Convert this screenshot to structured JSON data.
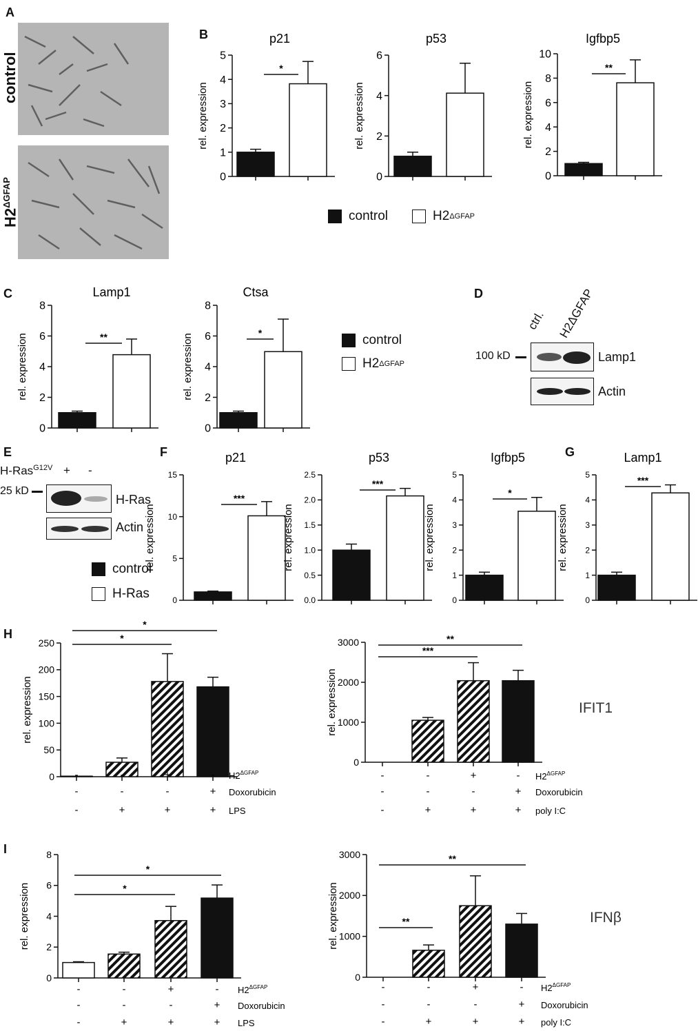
{
  "panels": [
    "A",
    "B",
    "C",
    "D",
    "E",
    "F",
    "G",
    "H",
    "I"
  ],
  "panel_a": {
    "labels": {
      "control": "control",
      "h2": "H2",
      "h2_sup": "ΔGFAP"
    }
  },
  "legend_common": {
    "control": "control",
    "h2": "H2",
    "h2_sup": "ΔGFAP",
    "hras": "H-Ras"
  },
  "blot_d": {
    "header1": "ctrl.",
    "header2": "H2ΔGFAP",
    "marker": "100 kD",
    "row1": "Lamp1",
    "row2": "Actin"
  },
  "blot_e": {
    "top_label": "H-Ras",
    "top_sup": "G12V",
    "plus": "+",
    "minus": "-",
    "marker": "25 kD",
    "row1": "H-Ras",
    "row2": "Actin"
  },
  "row_labels_h": {
    "h2": "H2",
    "h2_sup": "ΔGFAP",
    "dox": "Doxorubicin",
    "lps": "LPS",
    "polyic": "poly I:C"
  },
  "side_labels": {
    "ifit1": "IFIT1",
    "ifnb": "IFNβ"
  },
  "chart_data": [
    {
      "id": "B-p21",
      "type": "bar",
      "title": "p21",
      "ylabel": "rel. expression",
      "ylim": [
        0,
        5
      ],
      "yticks": [
        "0",
        "1",
        "2",
        "3",
        "4",
        "5"
      ],
      "categories": [
        "control",
        "H2ΔGFAP"
      ],
      "values": [
        1.0,
        3.82
      ],
      "errors": [
        0.12,
        0.92
      ],
      "fills": [
        "solid",
        "open"
      ],
      "sig": [
        {
          "from": 0,
          "to": 1,
          "label": "*"
        }
      ]
    },
    {
      "id": "B-p53",
      "type": "bar",
      "title": "p53",
      "ylabel": "rel. expression",
      "ylim": [
        0,
        6
      ],
      "yticks": [
        "0",
        "2",
        "4",
        "6"
      ],
      "categories": [
        "control",
        "H2ΔGFAP"
      ],
      "values": [
        1.0,
        4.12
      ],
      "errors": [
        0.2,
        1.48
      ],
      "fills": [
        "solid",
        "open"
      ],
      "sig": []
    },
    {
      "id": "B-igfbp5",
      "type": "bar",
      "title": "Igfbp5",
      "ylabel": "rel. expression",
      "ylim": [
        0,
        10
      ],
      "yticks": [
        "0",
        "2",
        "4",
        "6",
        "8",
        "10"
      ],
      "categories": [
        "control",
        "H2ΔGFAP"
      ],
      "values": [
        1.0,
        7.62
      ],
      "errors": [
        0.1,
        1.88
      ],
      "fills": [
        "solid",
        "open"
      ],
      "sig": [
        {
          "from": 0,
          "to": 1,
          "label": "**"
        }
      ]
    },
    {
      "id": "C-lamp1",
      "type": "bar",
      "title": "Lamp1",
      "ylabel": "rel. expression",
      "ylim": [
        0,
        8
      ],
      "yticks": [
        "0",
        "2",
        "4",
        "6",
        "8"
      ],
      "categories": [
        "control",
        "H2ΔGFAP"
      ],
      "values": [
        1.0,
        4.78
      ],
      "errors": [
        0.1,
        1.02
      ],
      "fills": [
        "solid",
        "open"
      ],
      "sig": [
        {
          "from": 0,
          "to": 1,
          "label": "**"
        }
      ]
    },
    {
      "id": "C-ctsa",
      "type": "bar",
      "title": "Ctsa",
      "ylabel": "rel. expression",
      "ylim": [
        0,
        8
      ],
      "yticks": [
        "0",
        "2",
        "4",
        "6",
        "8"
      ],
      "categories": [
        "control",
        "H2ΔGFAP"
      ],
      "values": [
        1.0,
        4.98
      ],
      "errors": [
        0.1,
        2.12
      ],
      "fills": [
        "solid",
        "open"
      ],
      "sig": [
        {
          "from": 0,
          "to": 1,
          "label": "*"
        }
      ]
    },
    {
      "id": "F-p21",
      "type": "bar",
      "title": "p21",
      "ylabel": "rel. expression",
      "ylim": [
        0,
        15
      ],
      "yticks": [
        "0",
        "5",
        "10",
        "15"
      ],
      "categories": [
        "control",
        "H-Ras"
      ],
      "values": [
        1.0,
        10.1
      ],
      "errors": [
        0.1,
        1.7
      ],
      "fills": [
        "solid",
        "open"
      ],
      "sig": [
        {
          "from": 0,
          "to": 1,
          "label": "***"
        }
      ]
    },
    {
      "id": "F-p53",
      "type": "bar",
      "title": "p53",
      "ylabel": "rel. expression",
      "ylim": [
        0,
        2.5
      ],
      "yticks": [
        "0.0",
        "0.5",
        "1.0",
        "1.5",
        "2.0",
        "2.5"
      ],
      "categories": [
        "control",
        "H-Ras"
      ],
      "values": [
        1.0,
        2.08
      ],
      "errors": [
        0.12,
        0.15
      ],
      "fills": [
        "solid",
        "open"
      ],
      "sig": [
        {
          "from": 0,
          "to": 1,
          "label": "***"
        }
      ]
    },
    {
      "id": "F-igfbp5",
      "type": "bar",
      "title": "Igfbp5",
      "ylabel": "rel. expression",
      "ylim": [
        0,
        5
      ],
      "yticks": [
        "0",
        "1",
        "2",
        "3",
        "4",
        "5"
      ],
      "categories": [
        "control",
        "H-Ras"
      ],
      "values": [
        1.0,
        3.55
      ],
      "errors": [
        0.12,
        0.55
      ],
      "fills": [
        "solid",
        "open"
      ],
      "sig": [
        {
          "from": 0,
          "to": 1,
          "label": "*"
        }
      ]
    },
    {
      "id": "G-lamp1",
      "type": "bar",
      "title": "Lamp1",
      "ylabel": "rel. expression",
      "ylim": [
        0,
        5
      ],
      "yticks": [
        "0",
        "1",
        "2",
        "3",
        "4",
        "5"
      ],
      "categories": [
        "control",
        "H-Ras"
      ],
      "values": [
        1.0,
        4.28
      ],
      "errors": [
        0.12,
        0.32
      ],
      "fills": [
        "solid",
        "open"
      ],
      "sig": [
        {
          "from": 0,
          "to": 1,
          "label": "***"
        }
      ]
    },
    {
      "id": "H-lps",
      "type": "bar",
      "title": "",
      "ylabel": "rel. expression",
      "ylim": [
        0,
        250
      ],
      "yticks": [
        "0",
        "50",
        "100",
        "150",
        "200",
        "250"
      ],
      "categories": [
        "1",
        "2",
        "3",
        "4"
      ],
      "values": [
        1,
        27,
        178,
        168
      ],
      "errors": [
        0,
        8,
        52,
        18
      ],
      "fills": [
        "solid",
        "hatch",
        "hatch",
        "solid"
      ],
      "sig": [
        {
          "from": 0,
          "to": 2,
          "label": "*"
        },
        {
          "from": 0,
          "to": 3,
          "label": "*"
        }
      ],
      "rows": [
        [
          "-",
          "-",
          "+",
          "-"
        ],
        [
          "-",
          "-",
          "-",
          "+"
        ],
        [
          "-",
          "+",
          "+",
          "+"
        ]
      ],
      "row_labels": [
        "H2ΔGFAP",
        "Doxorubicin",
        "LPS"
      ]
    },
    {
      "id": "H-polyic",
      "type": "bar",
      "title": "",
      "ylabel": "rel. expression",
      "ylim": [
        0,
        3000
      ],
      "yticks": [
        "0",
        "1000",
        "2000",
        "3000"
      ],
      "categories": [
        "1",
        "2",
        "3",
        "4"
      ],
      "values": [
        0,
        1050,
        2040,
        2040
      ],
      "errors": [
        0,
        70,
        450,
        260
      ],
      "fills": [
        "solid",
        "hatch",
        "hatch",
        "solid"
      ],
      "sig": [
        {
          "from": 0,
          "to": 2,
          "label": "***"
        },
        {
          "from": 0,
          "to": 3,
          "label": "**"
        }
      ],
      "rows": [
        [
          "-",
          "-",
          "+",
          "-"
        ],
        [
          "-",
          "-",
          "-",
          "+"
        ],
        [
          "-",
          "+",
          "+",
          "+"
        ]
      ],
      "row_labels": [
        "H2ΔGFAP",
        "Doxorubicin",
        "poly I:C"
      ]
    },
    {
      "id": "I-lps",
      "type": "bar",
      "title": "",
      "ylabel": "rel. expression",
      "ylim": [
        0,
        8
      ],
      "yticks": [
        "0",
        "2",
        "4",
        "6",
        "8"
      ],
      "categories": [
        "1",
        "2",
        "3",
        "4"
      ],
      "values": [
        1.0,
        1.55,
        3.72,
        5.18
      ],
      "errors": [
        0.05,
        0.12,
        0.92,
        0.85
      ],
      "fills": [
        "open",
        "hatch",
        "hatch",
        "solid"
      ],
      "sig": [
        {
          "from": 0,
          "to": 2,
          "label": "*"
        },
        {
          "from": 0,
          "to": 3,
          "label": "*"
        }
      ],
      "rows": [
        [
          "-",
          "-",
          "+",
          "-"
        ],
        [
          "-",
          "-",
          "-",
          "+"
        ],
        [
          "-",
          "+",
          "+",
          "+"
        ]
      ],
      "row_labels": [
        "H2ΔGFAP",
        "Doxorubicin",
        "LPS"
      ]
    },
    {
      "id": "I-polyic",
      "type": "bar",
      "title": "",
      "ylabel": "rel. expression",
      "ylim": [
        0,
        3000
      ],
      "yticks": [
        "0",
        "1000",
        "2000",
        "3000"
      ],
      "categories": [
        "1",
        "2",
        "3",
        "4"
      ],
      "values": [
        0,
        660,
        1750,
        1300
      ],
      "errors": [
        0,
        130,
        730,
        260
      ],
      "fills": [
        "solid",
        "hatch",
        "hatch",
        "solid"
      ],
      "sig": [
        {
          "from": 0,
          "to": 1,
          "label": "**"
        },
        {
          "from": 0,
          "to": 3,
          "label": "**"
        }
      ],
      "rows": [
        [
          "-",
          "-",
          "+",
          "-"
        ],
        [
          "-",
          "-",
          "-",
          "+"
        ],
        [
          "-",
          "+",
          "+",
          "+"
        ]
      ],
      "row_labels": [
        "H2ΔGFAP",
        "Doxorubicin",
        "poly I:C"
      ]
    }
  ]
}
